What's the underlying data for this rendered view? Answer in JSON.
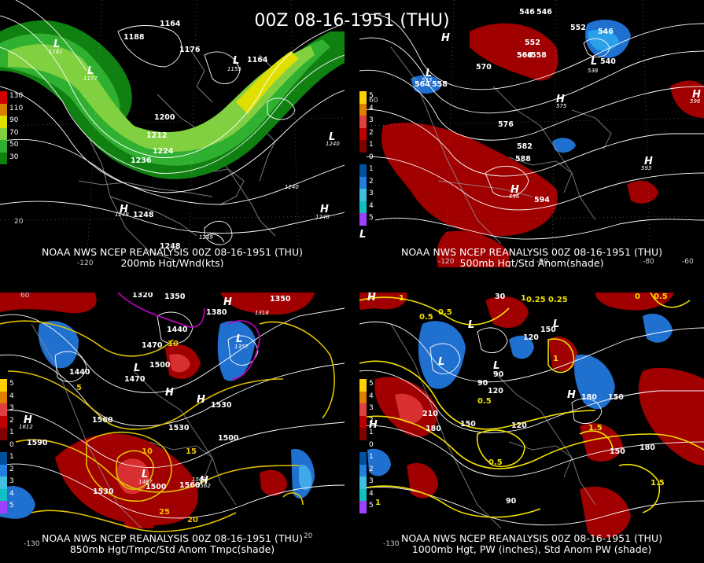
{
  "title": "00Z 08-16-1951 (THU)",
  "panels": [
    {
      "id": "p200",
      "caption1": "NOAA NWS NCEP REANALYSIS 00Z 08-16-1951 (THU)",
      "caption2": "200mb Hgt/Wnd(kts)",
      "legend": {
        "labels": [
          "130",
          "110",
          "90",
          "70",
          "50",
          "30"
        ],
        "colors": [
          "#d00000",
          "#d88000",
          "#e0e000",
          "#80d040",
          "#30b030",
          "#108010"
        ]
      },
      "labels": [
        "1164",
        "1176",
        "1188",
        "1164",
        "1200",
        "1212",
        "1224",
        "1236",
        "1248",
        "1248",
        "1240",
        "1248",
        "1248",
        "1181",
        "1177",
        "1155",
        "1240",
        "1249",
        "L",
        "L",
        "L",
        "L",
        "H",
        "H",
        "20",
        "-120"
      ]
    },
    {
      "id": "p500",
      "caption1": "NOAA NWS NCEP REANALYSIS 00Z 08-16-1951 (THU)",
      "caption2": "500mb Hgt/Std Anom(shade)",
      "legend": {
        "labels": [
          "5",
          "4",
          "3",
          "2",
          "1",
          "0",
          "1",
          "2",
          "3",
          "4",
          "5"
        ],
        "colors": [
          "#ffd000",
          "#e08000",
          "#e04040",
          "#c00000",
          "#800000",
          "#000000",
          "#0050a0",
          "#2080e0",
          "#40c0e0",
          "#10c0c0",
          "#a040ff"
        ]
      },
      "labels": [
        "546",
        "546",
        "552",
        "552",
        "546",
        "540",
        "564",
        "558",
        "566",
        "570",
        "564",
        "558",
        "576",
        "582",
        "588",
        "594",
        "596",
        "593",
        "575",
        "553",
        "538",
        "596",
        "H",
        "H",
        "H",
        "L",
        "L",
        "L",
        "H",
        "H",
        "-120",
        "-90",
        "-80",
        "-60",
        "60",
        "L"
      ]
    },
    {
      "id": "p850",
      "caption1": "NOAA NWS NCEP REANALYSIS 00Z 08-16-1951 (THU)",
      "caption2": "850mb Hgt/Tmpc/Std Anom Tmpc(shade)",
      "legend": {
        "labels": [
          "5",
          "4",
          "3",
          "2",
          "1",
          "0",
          "1",
          "2",
          "3",
          "4",
          "5"
        ],
        "colors": [
          "#ffd000",
          "#e08000",
          "#e04040",
          "#c00000",
          "#800000",
          "#000000",
          "#0050a0",
          "#2080e0",
          "#40c0e0",
          "#10c0c0",
          "#a040ff"
        ]
      },
      "labels": [
        "1320",
        "1350",
        "1350",
        "1470",
        "1440",
        "1380",
        "1500",
        "1440",
        "1470",
        "1530",
        "1560",
        "1530",
        "1500",
        "1560",
        "1590",
        "1530",
        "1500",
        "1560",
        "1612",
        "1487",
        "1562",
        "1357",
        "1318",
        "L",
        "L",
        "L",
        "H",
        "H",
        "H",
        "H",
        "H",
        "10",
        "10",
        "15",
        "5",
        "25",
        "20",
        "60",
        "-130",
        "20"
      ]
    },
    {
      "id": "p1000",
      "caption1": "NOAA NWS NCEP REANALYSIS 00Z 08-16-1951 (THU)",
      "caption2": "1000mb Hgt, PW (inches), Std Anom PW (shade)",
      "legend": {
        "labels": [
          "5",
          "4",
          "3",
          "2",
          "1",
          "0",
          "1",
          "2",
          "3",
          "4",
          "5"
        ],
        "colors": [
          "#ffd000",
          "#e08000",
          "#e04040",
          "#c00000",
          "#800000",
          "#000000",
          "#0050a0",
          "#2080e0",
          "#40c0e0",
          "#10c0c0",
          "#a040ff"
        ]
      },
      "labels": [
        "30",
        "0.25",
        "0.25",
        "0",
        "0.5",
        "0.5",
        "1",
        "1",
        "90",
        "120",
        "150",
        "180",
        "210",
        "180",
        "150",
        "120",
        "90",
        "90",
        "150",
        "180",
        "120",
        "150",
        "0.5",
        "0.5",
        "1.5",
        "1.5",
        "1",
        "1",
        "0.5",
        "H",
        "H",
        "H",
        "L",
        "L",
        "L",
        "L",
        "-130",
        "60"
      ]
    }
  ]
}
